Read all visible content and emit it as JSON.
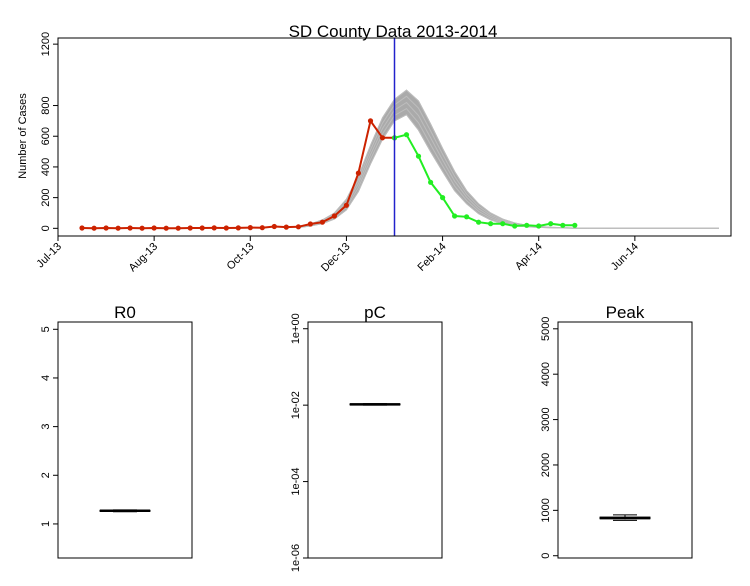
{
  "colors": {
    "observed_early": "#cc2200",
    "observed_late": "#22ee22",
    "forecast_band": "#aaaaaa",
    "current_time": "#2222cc"
  },
  "chart_data": [
    {
      "type": "line",
      "title": "SD County Data 2013-2014",
      "xlabel": "",
      "ylabel": "Number of Cases",
      "xlim": [
        "2013-07-01",
        "2014-07-28"
      ],
      "ylim": [
        -50,
        1240
      ],
      "yticks": [
        0,
        200,
        400,
        600,
        800,
        1200
      ],
      "xticks": [
        {
          "date": "2013-07-01",
          "label": "Jul-13"
        },
        {
          "date": "2013-08-26",
          "label": "Aug-13"
        },
        {
          "date": "2013-10-21",
          "label": "Oct-13"
        },
        {
          "date": "2013-12-16",
          "label": "Dec-13"
        },
        {
          "date": "2014-02-10",
          "label": "Feb-14"
        },
        {
          "date": "2014-04-07",
          "label": "Apr-14"
        },
        {
          "date": "2014-06-02",
          "label": "Jun-14"
        }
      ],
      "current_time": "2014-01-13",
      "series": [
        {
          "x": [
            "2013-07-15",
            "2013-07-22",
            "2013-07-29",
            "2013-08-05",
            "2013-08-12",
            "2013-08-19",
            "2013-08-26",
            "2013-09-02",
            "2013-09-09",
            "2013-09-16",
            "2013-09-23",
            "2013-09-30",
            "2013-10-07",
            "2013-10-14",
            "2013-10-21",
            "2013-10-28",
            "2013-11-04",
            "2013-11-11",
            "2013-11-18",
            "2013-11-25",
            "2013-12-02",
            "2013-12-09",
            "2013-12-16",
            "2013-12-23",
            "2013-12-30",
            "2014-01-06",
            "2014-01-13"
          ],
          "values": [
            2,
            1,
            2,
            1,
            2,
            1,
            2,
            1,
            1,
            2,
            2,
            3,
            2,
            3,
            5,
            4,
            12,
            8,
            10,
            28,
            40,
            80,
            150,
            360,
            700,
            590,
            590
          ]
        },
        {
          "x": [
            "2014-01-13",
            "2014-01-20",
            "2014-01-27",
            "2014-02-03",
            "2014-02-10",
            "2014-02-17",
            "2014-02-24",
            "2014-03-03",
            "2014-03-10",
            "2014-03-17",
            "2014-03-24",
            "2014-03-31",
            "2014-04-07",
            "2014-04-14",
            "2014-04-21",
            "2014-04-28"
          ],
          "values": [
            590,
            610,
            470,
            300,
            200,
            80,
            75,
            40,
            30,
            30,
            15,
            20,
            15,
            30,
            20,
            20
          ]
        }
      ],
      "forecast_band": {
        "x": [
          "2013-11-18",
          "2013-11-25",
          "2013-12-02",
          "2013-12-09",
          "2013-12-16",
          "2013-12-23",
          "2013-12-30",
          "2014-01-06",
          "2014-01-13",
          "2014-01-20",
          "2014-01-27",
          "2014-02-03",
          "2014-02-10",
          "2014-02-17",
          "2014-02-24",
          "2014-03-03",
          "2014-03-10",
          "2014-03-17",
          "2014-03-24",
          "2014-03-31",
          "2014-04-07",
          "2014-04-14",
          "2014-04-21",
          "2014-04-28",
          "2014-05-05",
          "2014-05-19",
          "2014-06-02",
          "2014-06-16",
          "2014-06-30",
          "2014-07-14",
          "2014-07-21"
        ],
        "lower": [
          5,
          15,
          30,
          60,
          120,
          240,
          420,
          580,
          700,
          740,
          640,
          500,
          370,
          245,
          160,
          95,
          55,
          30,
          18,
          10,
          6,
          4,
          2,
          1,
          1,
          0,
          0,
          0,
          0,
          0,
          0
        ],
        "upper": [
          12,
          28,
          55,
          100,
          190,
          340,
          540,
          720,
          840,
          900,
          830,
          680,
          520,
          370,
          245,
          160,
          100,
          60,
          35,
          20,
          12,
          7,
          4,
          2,
          2,
          1,
          0,
          0,
          0,
          0,
          0
        ]
      }
    },
    {
      "type": "box",
      "title": "R0",
      "ylim": [
        0.3,
        5.15
      ],
      "yticks": [
        "1",
        "2",
        "3",
        "4",
        "5"
      ],
      "median": 1.27,
      "q1": 1.26,
      "q3": 1.28,
      "whisker_low": 1.25,
      "whisker_high": 1.29
    },
    {
      "type": "box",
      "title": "pC",
      "log_scale": true,
      "ylim": [
        1e-06,
        1.5
      ],
      "yticks": [
        "1e-06",
        "1e-04",
        "1e-02",
        "1e+00"
      ],
      "median": 0.0105,
      "q1": 0.0102,
      "q3": 0.0108,
      "whisker_low": 0.01,
      "whisker_high": 0.011
    },
    {
      "type": "box",
      "title": "Peak",
      "ylim": [
        -50,
        5150
      ],
      "yticks": [
        "0",
        "1000",
        "2000",
        "3000",
        "4000",
        "5000"
      ],
      "median": 830,
      "q1": 815,
      "q3": 850,
      "whisker_low": 780,
      "whisker_high": 900
    }
  ]
}
